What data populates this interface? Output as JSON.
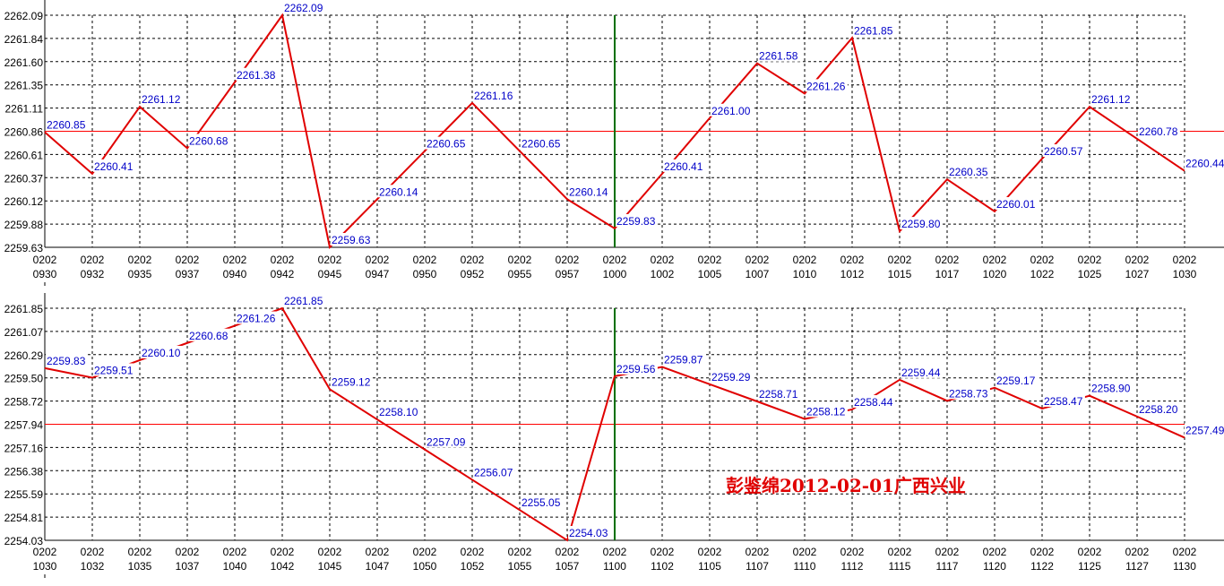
{
  "chart_data": [
    {
      "type": "line",
      "title": "",
      "x_top": "0202",
      "x": [
        "0930",
        "0932",
        "0935",
        "0937",
        "0940",
        "0942",
        "0945",
        "0947",
        "0950",
        "0952",
        "0955",
        "0957",
        "1000",
        "1002",
        "1005",
        "1007",
        "1010",
        "1012",
        "1015",
        "1017",
        "1020",
        "1022",
        "1025",
        "1027",
        "1030"
      ],
      "values": [
        2260.85,
        2260.41,
        2261.12,
        2260.68,
        2261.38,
        2262.09,
        2259.63,
        2260.14,
        2260.65,
        2261.16,
        2260.65,
        2260.14,
        2259.83,
        2260.41,
        2261.0,
        2261.58,
        2261.26,
        2261.85,
        2259.8,
        2260.35,
        2260.01,
        2260.57,
        2261.12,
        2260.78,
        2260.44
      ],
      "yticks": [
        "2262.09",
        "2261.84",
        "2261.60",
        "2261.35",
        "2261.11",
        "2260.86",
        "2260.61",
        "2260.37",
        "2260.12",
        "2259.88",
        "2259.63"
      ],
      "ylim": [
        2259.63,
        2262.09
      ],
      "reference_line": 2260.86,
      "marker_x": "1000",
      "grid": true
    },
    {
      "type": "line",
      "title": "",
      "x_top": "0202",
      "x": [
        "1030",
        "1032",
        "1035",
        "1037",
        "1040",
        "1042",
        "1045",
        "1047",
        "1050",
        "1052",
        "1055",
        "1057",
        "1100",
        "1102",
        "1105",
        "1107",
        "1110",
        "1112",
        "1115",
        "1117",
        "1120",
        "1122",
        "1125",
        "1127",
        "1130"
      ],
      "values": [
        2259.83,
        2259.51,
        2260.1,
        2260.68,
        2261.26,
        2261.85,
        2259.12,
        2258.1,
        2257.09,
        2256.07,
        2255.05,
        2254.03,
        2259.56,
        2259.87,
        2259.29,
        2258.71,
        2258.12,
        2258.44,
        2259.44,
        2258.73,
        2259.17,
        2258.47,
        2258.9,
        2258.2,
        2257.49
      ],
      "yticks": [
        "2261.85",
        "2261.07",
        "2260.29",
        "2259.50",
        "2258.72",
        "2257.94",
        "2257.16",
        "2256.38",
        "2255.59",
        "2254.81",
        "2254.03"
      ],
      "ylim": [
        2254.03,
        2261.85
      ],
      "reference_line": 2257.94,
      "marker_x": "1100",
      "grid": true
    }
  ],
  "annotation": "彭鉴绵2012-02-01广西兴业",
  "colors": {
    "line": "#e00000",
    "label": "#0000c8",
    "marker": "#007000",
    "ref": "#ff0000"
  }
}
